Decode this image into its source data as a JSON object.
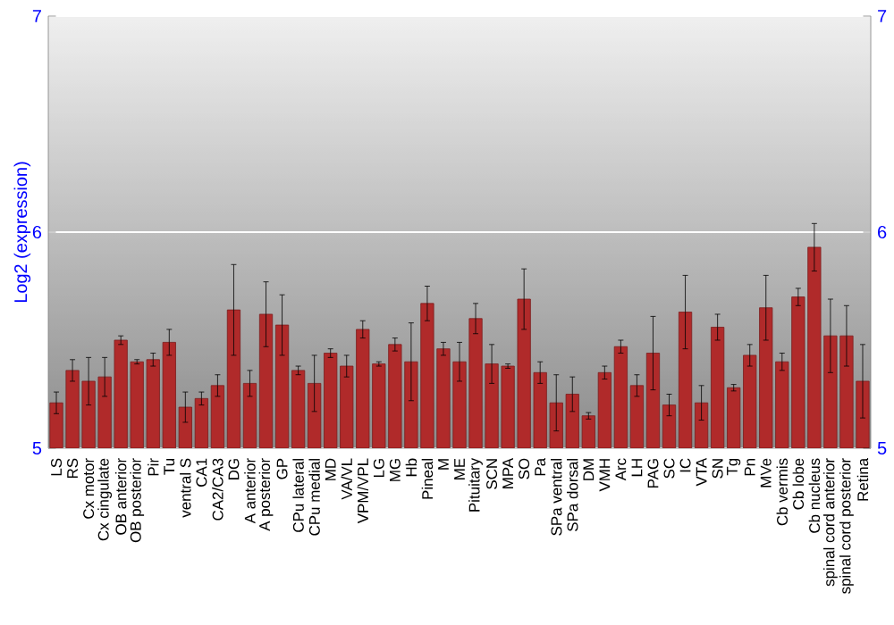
{
  "chart_data": {
    "type": "bar",
    "ylabel": "Log2 (expression)",
    "categories": [
      "LS",
      "RS",
      "Cx motor",
      "Cx cingulate",
      "OB anterior",
      "OB posterior",
      "Pir",
      "Tu",
      "ventral S",
      "CA1",
      "CA2/CA3",
      "DG",
      "A anterior",
      "A posterior",
      "GP",
      "CPu lateral",
      "CPu medial",
      "MD",
      "VA/VL",
      "VPM/VPL",
      "LG",
      "MG",
      "Hb",
      "Pineal",
      "M",
      "ME",
      "Pituitary",
      "SCN",
      "MPA",
      "SO",
      "Pa",
      "SPa ventral",
      "SPa dorsal",
      "DM",
      "VMH",
      "Arc",
      "LH",
      "PAG",
      "SC",
      "IC",
      "VTA",
      "SN",
      "Tg",
      "Pn",
      "MVe",
      "Cb vermis",
      "Cb lobe",
      "Cb nucleus",
      "spinal cord anterior",
      "spinal cord posterior",
      "Retina"
    ],
    "values": [
      5.21,
      5.36,
      5.31,
      5.33,
      5.5,
      5.4,
      5.41,
      5.49,
      5.19,
      5.23,
      5.29,
      5.64,
      5.3,
      5.62,
      5.57,
      5.36,
      5.3,
      5.44,
      5.38,
      5.55,
      5.39,
      5.48,
      5.4,
      5.67,
      5.46,
      5.4,
      5.6,
      5.39,
      5.38,
      5.69,
      5.35,
      5.21,
      5.25,
      5.15,
      5.35,
      5.47,
      5.29,
      5.44,
      5.2,
      5.63,
      5.21,
      5.56,
      5.28,
      5.43,
      5.65,
      5.4,
      5.7,
      5.93,
      5.52,
      5.52,
      5.31
    ],
    "errors": [
      0.05,
      0.05,
      0.11,
      0.09,
      0.02,
      0.01,
      0.03,
      0.06,
      0.07,
      0.03,
      0.05,
      0.21,
      0.06,
      0.15,
      0.14,
      0.02,
      0.13,
      0.02,
      0.05,
      0.04,
      0.01,
      0.03,
      0.18,
      0.08,
      0.03,
      0.09,
      0.07,
      0.09,
      0.01,
      0.14,
      0.05,
      0.13,
      0.08,
      0.015,
      0.03,
      0.03,
      0.05,
      0.17,
      0.05,
      0.17,
      0.08,
      0.06,
      0.015,
      0.05,
      0.15,
      0.04,
      0.04,
      0.11,
      0.17,
      0.14,
      0.17
    ],
    "color": "#b02a2a",
    "ylim": [
      5,
      7
    ],
    "yticks": [
      5,
      6,
      7
    ],
    "y2lim": [
      5,
      7
    ],
    "y2ticks": [
      5,
      6,
      7
    ],
    "grid": "y"
  }
}
